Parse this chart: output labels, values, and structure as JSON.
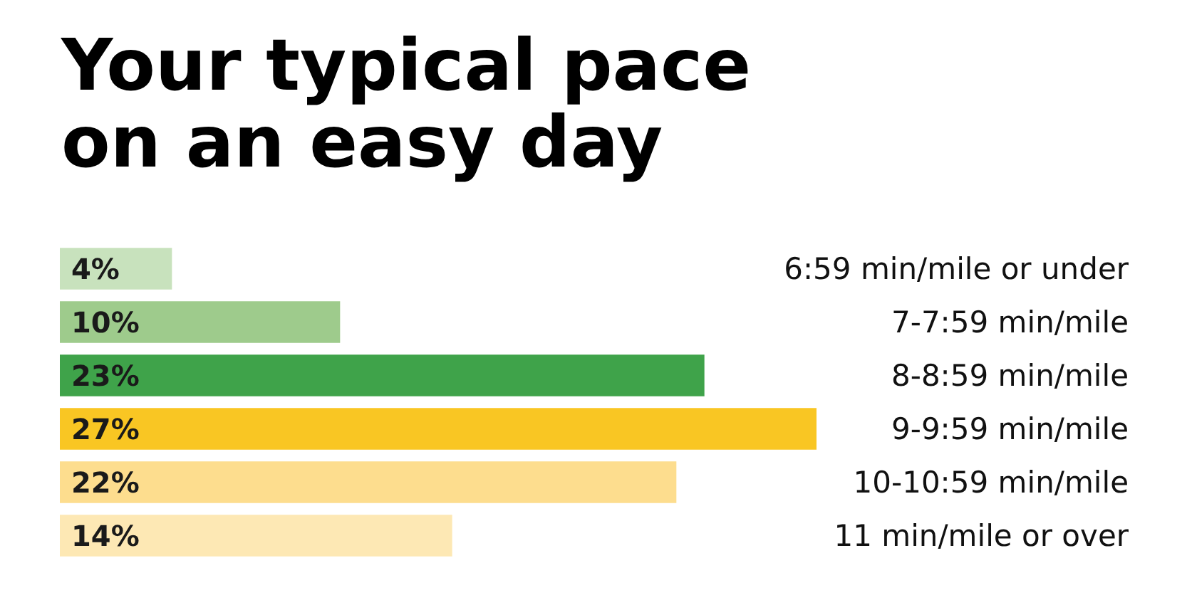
{
  "chart_data": {
    "type": "bar",
    "orientation": "horizontal",
    "title": "Your typical pace\non an easy day",
    "categories": [
      "6:59 min/mile or under",
      "7-7:59 min/mile",
      "8-8:59 min/mile",
      "9-9:59 min/mile",
      "10-10:59 min/mile",
      "11 min/mile or over"
    ],
    "values": [
      4,
      10,
      23,
      27,
      22,
      14
    ],
    "value_labels": [
      "4%",
      "10%",
      "23%",
      "27%",
      "22%",
      "14%"
    ],
    "colors": [
      "#c8e2bd",
      "#9ecb8c",
      "#3fa34a",
      "#f9c623",
      "#fddd8e",
      "#fde8b4"
    ],
    "tick_labels": "y"
  }
}
